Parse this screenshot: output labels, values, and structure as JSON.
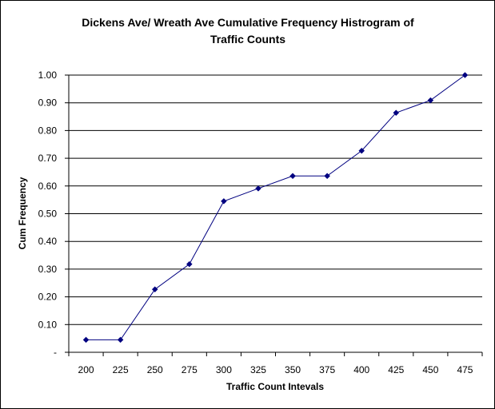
{
  "chart_data": {
    "type": "line",
    "title_line1": "Dickens Ave/ Wreath Ave Cumulative Frequency Histrogram of",
    "title_line2": "Traffic Counts",
    "xlabel": "Traffic Count Intevals",
    "ylabel": "Cum Frequency",
    "categories": [
      "200",
      "225",
      "250",
      "275",
      "300",
      "325",
      "350",
      "375",
      "400",
      "425",
      "450",
      "475"
    ],
    "series": [
      {
        "values": [
          0.045,
          0.045,
          0.227,
          0.318,
          0.545,
          0.591,
          0.636,
          0.636,
          0.727,
          0.864,
          0.909,
          1.0
        ]
      }
    ],
    "ylim": [
      0,
      1.0
    ],
    "yticks": [
      "-",
      "0.10",
      "0.20",
      "0.30",
      "0.40",
      "0.50",
      "0.60",
      "0.70",
      "0.80",
      "0.90",
      "1.00"
    ],
    "grid": true,
    "legend": "none",
    "colors": {
      "line": "#000080",
      "marker": "#000080",
      "grid": "#000000",
      "frame": "#000000"
    }
  }
}
